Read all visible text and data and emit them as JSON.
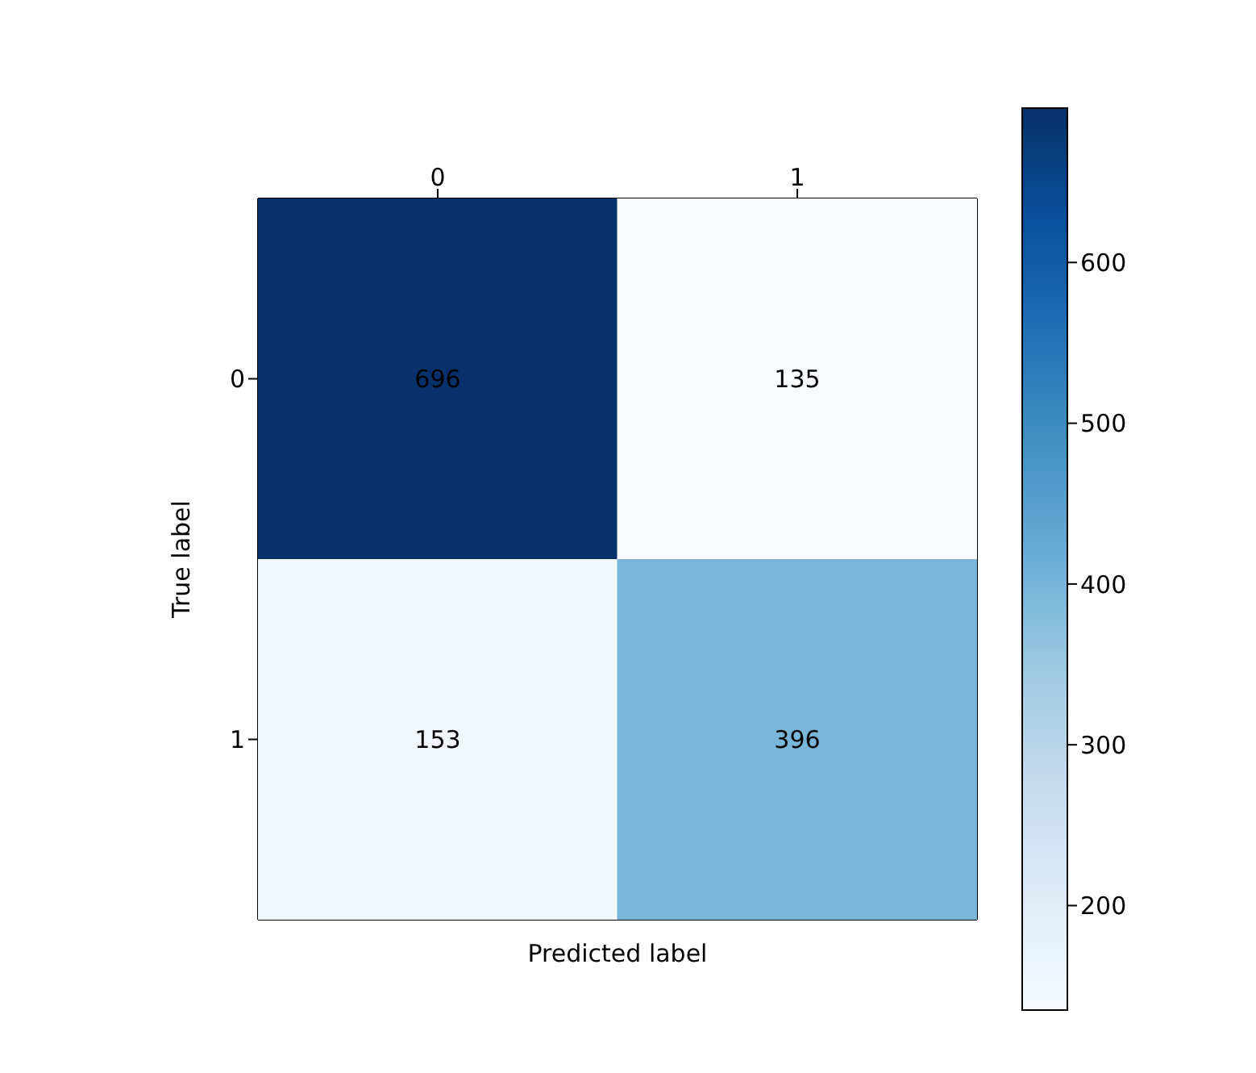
{
  "chart_data": {
    "type": "heatmap",
    "xlabel": "Predicted label",
    "ylabel": "True label",
    "categories": [
      "0",
      "1"
    ],
    "y_categories": [
      "0",
      "1"
    ],
    "cells": [
      [
        696,
        135
      ],
      [
        153,
        396
      ]
    ],
    "data_labels": true,
    "clim": [
      135,
      696
    ],
    "cticks": [
      200,
      300,
      400,
      500,
      600
    ]
  }
}
